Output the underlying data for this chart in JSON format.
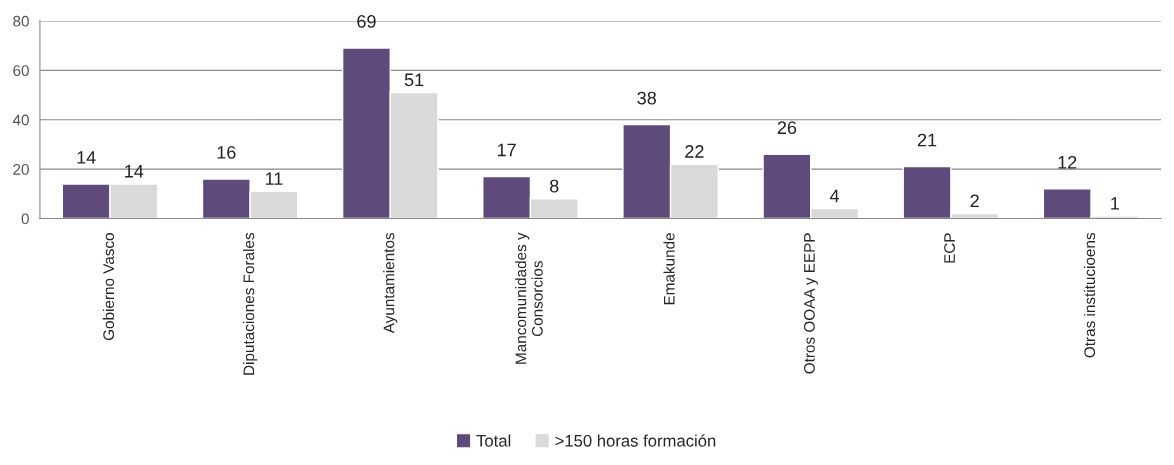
{
  "chart_data": {
    "type": "bar",
    "categories": [
      "Gobierno Vasco",
      "Diputaciones Forales",
      "Ayuntamientos",
      "Mancomunidades y\nConsorcios",
      "Emakunde",
      "Otros OOAA y EEPP",
      "ECP",
      "Otras institucioens"
    ],
    "series": [
      {
        "name": "Total",
        "color": "#5f4b7b",
        "values": [
          14,
          16,
          69,
          17,
          38,
          26,
          21,
          12
        ]
      },
      {
        "name": ">150 horas formación",
        "color": "#d9d9d9",
        "values": [
          14,
          11,
          51,
          8,
          22,
          4,
          2,
          1
        ]
      }
    ],
    "ylim": [
      0,
      80
    ],
    "yticks": [
      0,
      20,
      40,
      60,
      80
    ],
    "grid": "y",
    "legend": "bottom",
    "data_labels": true
  }
}
